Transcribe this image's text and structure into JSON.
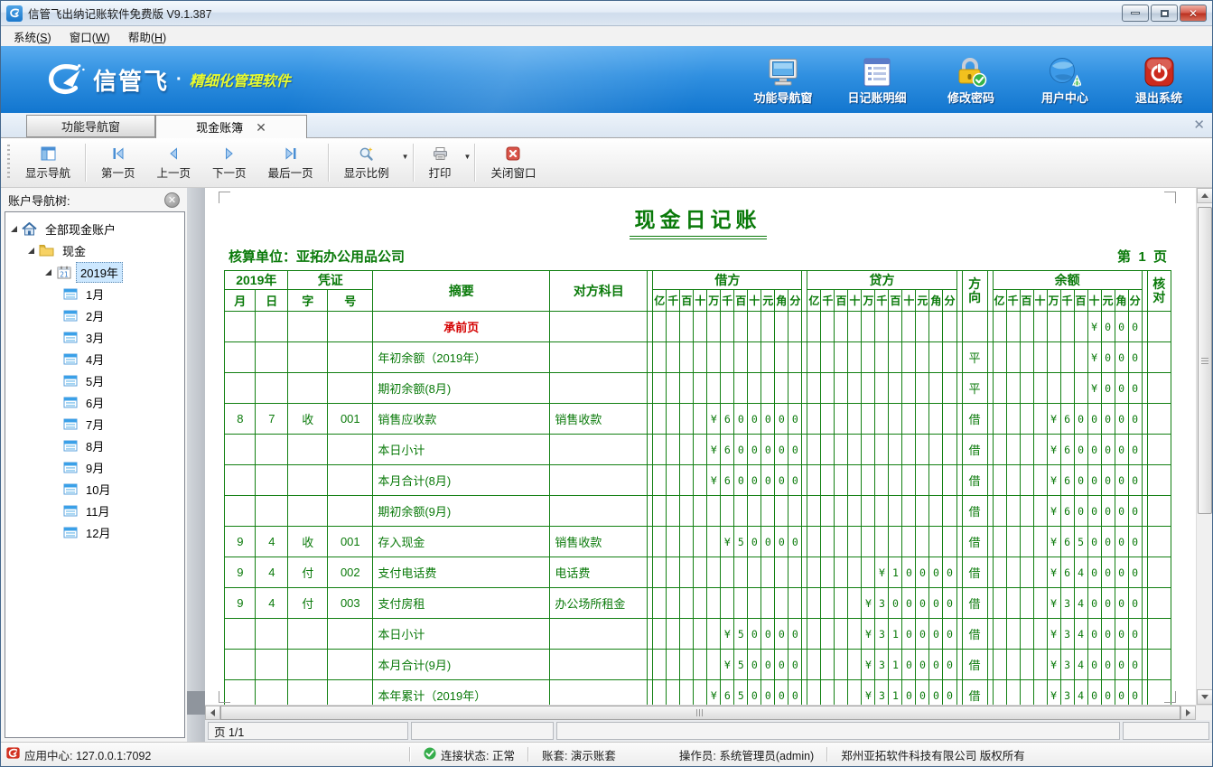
{
  "window": {
    "title": "信管飞出纳记账软件免费版 V9.1.387"
  },
  "menubar": {
    "items": [
      {
        "label": "系统",
        "mnemonic": "S"
      },
      {
        "label": "窗口",
        "mnemonic": "W"
      },
      {
        "label": "帮助",
        "mnemonic": "H"
      }
    ]
  },
  "banner": {
    "brand": "信管飞",
    "separator": "·",
    "slogan": "精细化管理软件",
    "buttons": [
      {
        "id": "nav-window",
        "label": "功能导航窗",
        "icon": "monitor-icon"
      },
      {
        "id": "journal-detail",
        "label": "日记账明细",
        "icon": "journal-list-icon"
      },
      {
        "id": "change-password",
        "label": "修改密码",
        "icon": "lock-check-icon"
      },
      {
        "id": "user-center",
        "label": "用户中心",
        "icon": "globe-user-icon"
      },
      {
        "id": "exit-system",
        "label": "退出系统",
        "icon": "power-icon"
      }
    ]
  },
  "tabs": [
    {
      "label": "功能导航窗",
      "active": false,
      "closable": false
    },
    {
      "label": "现金账簿",
      "active": true,
      "closable": true
    }
  ],
  "toolbar": {
    "buttons": [
      {
        "id": "show-nav",
        "label": "显示导航",
        "icon": "show-nav-icon",
        "dropdown": false
      },
      {
        "id": "first-page",
        "label": "第一页",
        "icon": "first-page-icon",
        "dropdown": false
      },
      {
        "id": "prev-page",
        "label": "上一页",
        "icon": "prev-page-icon",
        "dropdown": false
      },
      {
        "id": "next-page",
        "label": "下一页",
        "icon": "next-page-icon",
        "dropdown": false
      },
      {
        "id": "last-page",
        "label": "最后一页",
        "icon": "last-page-icon",
        "dropdown": false
      },
      {
        "id": "zoom-ratio",
        "label": "显示比例",
        "icon": "zoom-ratio-icon",
        "dropdown": true
      },
      {
        "id": "print",
        "label": "打印",
        "icon": "print-icon",
        "dropdown": true
      },
      {
        "id": "close-window",
        "label": "关闭窗口",
        "icon": "close-window-icon",
        "dropdown": false
      }
    ]
  },
  "sidebar": {
    "title": "账户导航树:",
    "tree": {
      "root": "全部现金账户",
      "account": "现金",
      "year": "2019年",
      "months": [
        "1月",
        "2月",
        "3月",
        "4月",
        "5月",
        "6月",
        "7月",
        "8月",
        "9月",
        "10月",
        "11月",
        "12月"
      ]
    }
  },
  "document": {
    "title": "现金日记账",
    "unit_label": "核算单位：亚拓办公用品公司",
    "page_label": "第  1  页"
  },
  "table": {
    "headers": {
      "year": "2019年",
      "voucher": "凭证",
      "month": "月",
      "day": "日",
      "word": "字",
      "number": "号",
      "summary": "摘要",
      "counterpart": "对方科目",
      "debit": "借方",
      "credit": "贷方",
      "direction": "方向",
      "balance": "余额",
      "check": "核对"
    },
    "digit_headers": [
      "亿",
      "千",
      "百",
      "十",
      "万",
      "千",
      "百",
      "十",
      "元",
      "角",
      "分"
    ],
    "rows": [
      {
        "month": "",
        "day": "",
        "voucher_word": "",
        "voucher_no": "",
        "summary": "承前页",
        "red": true,
        "counterpart": "",
        "debit": "",
        "credit": "",
        "direction": "",
        "balance": "¥000"
      },
      {
        "month": "",
        "day": "",
        "voucher_word": "",
        "voucher_no": "",
        "summary": "年初余额（2019年）",
        "red": false,
        "counterpart": "",
        "debit": "",
        "credit": "",
        "direction": "平",
        "balance": "¥000"
      },
      {
        "month": "",
        "day": "",
        "voucher_word": "",
        "voucher_no": "",
        "summary": "期初余额(8月)",
        "red": false,
        "counterpart": "",
        "debit": "",
        "credit": "",
        "direction": "平",
        "balance": "¥000"
      },
      {
        "month": "8",
        "day": "7",
        "voucher_word": "收",
        "voucher_no": "001",
        "summary": "销售应收款",
        "red": false,
        "counterpart": "销售收款",
        "debit": "¥600000",
        "credit": "",
        "direction": "借",
        "balance": "¥600000"
      },
      {
        "month": "",
        "day": "",
        "voucher_word": "",
        "voucher_no": "",
        "summary": "本日小计",
        "red": false,
        "counterpart": "",
        "debit": "¥600000",
        "credit": "",
        "direction": "借",
        "balance": "¥600000"
      },
      {
        "month": "",
        "day": "",
        "voucher_word": "",
        "voucher_no": "",
        "summary": "本月合计(8月)",
        "red": false,
        "counterpart": "",
        "debit": "¥600000",
        "credit": "",
        "direction": "借",
        "balance": "¥600000"
      },
      {
        "month": "",
        "day": "",
        "voucher_word": "",
        "voucher_no": "",
        "summary": "期初余额(9月)",
        "red": false,
        "counterpart": "",
        "debit": "",
        "credit": "",
        "direction": "借",
        "balance": "¥600000"
      },
      {
        "month": "9",
        "day": "4",
        "voucher_word": "收",
        "voucher_no": "001",
        "summary": "存入现金",
        "red": false,
        "counterpart": "销售收款",
        "debit": "¥50000",
        "credit": "",
        "direction": "借",
        "balance": "¥650000"
      },
      {
        "month": "9",
        "day": "4",
        "voucher_word": "付",
        "voucher_no": "002",
        "summary": "支付电话费",
        "red": false,
        "counterpart": "电话费",
        "debit": "",
        "credit": "¥10000",
        "direction": "借",
        "balance": "¥640000"
      },
      {
        "month": "9",
        "day": "4",
        "voucher_word": "付",
        "voucher_no": "003",
        "summary": "支付房租",
        "red": false,
        "counterpart": "办公场所租金",
        "debit": "",
        "credit": "¥300000",
        "direction": "借",
        "balance": "¥340000"
      },
      {
        "month": "",
        "day": "",
        "voucher_word": "",
        "voucher_no": "",
        "summary": "本日小计",
        "red": false,
        "counterpart": "",
        "debit": "¥50000",
        "credit": "¥310000",
        "direction": "借",
        "balance": "¥340000"
      },
      {
        "month": "",
        "day": "",
        "voucher_word": "",
        "voucher_no": "",
        "summary": "本月合计(9月)",
        "red": false,
        "counterpart": "",
        "debit": "¥50000",
        "credit": "¥310000",
        "direction": "借",
        "balance": "¥340000"
      },
      {
        "month": "",
        "day": "",
        "voucher_word": "",
        "voucher_no": "",
        "summary": "本年累计（2019年）",
        "red": false,
        "counterpart": "",
        "debit": "¥650000",
        "credit": "¥310000",
        "direction": "借",
        "balance": "¥340000"
      }
    ]
  },
  "pagebar": {
    "page_label": "页 1/1"
  },
  "statusbar": {
    "app_center": "应用中心: 127.0.0.1:7092",
    "connection": "连接状态: 正常",
    "account_set": "账套: 演示账套",
    "operator": "操作员: 系统管理员(admin)",
    "copyright": "郑州亚拓软件科技有限公司  版权所有"
  },
  "colors": {
    "ledger_green": "#0a7a0a",
    "grid_red": "#e03030",
    "summary_red": "#d40000",
    "banner_blue": "#2f8fe0",
    "slogan_yellow": "#e9fb2e"
  }
}
